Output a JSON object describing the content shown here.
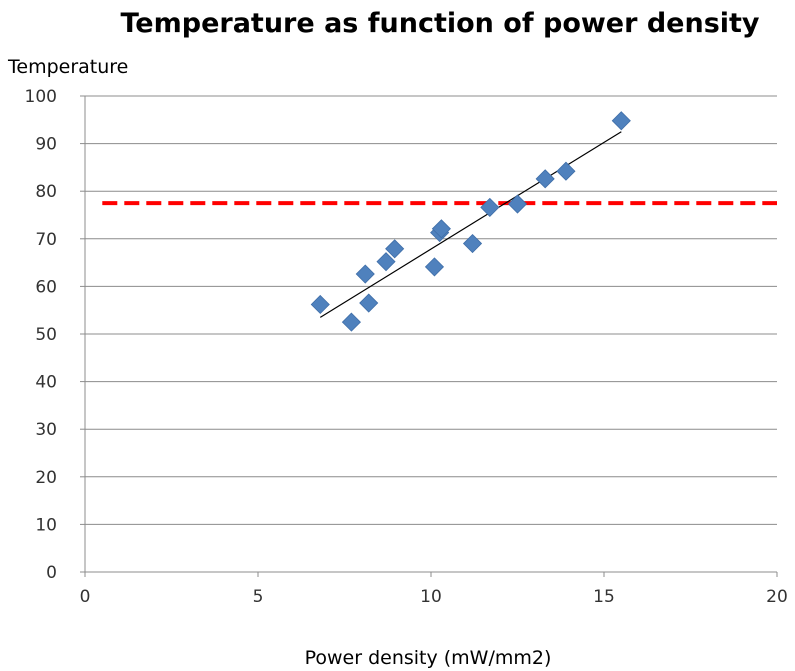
{
  "chart_data": {
    "type": "scatter",
    "title": "Temperature as function of power density",
    "xlabel": "Power density (mW/mm2)",
    "ylabel": "Temperature",
    "xlim": [
      0,
      20
    ],
    "ylim": [
      0,
      100
    ],
    "x_ticks": [
      0,
      5,
      10,
      15,
      20
    ],
    "y_ticks": [
      0,
      10,
      20,
      30,
      40,
      50,
      60,
      70,
      80,
      90,
      100
    ],
    "grid": "horizontal",
    "legend": "none",
    "series": [
      {
        "marker": "diamond",
        "color": "#4F81BD",
        "points": [
          {
            "x": 6.8,
            "y": 56.2
          },
          {
            "x": 7.7,
            "y": 52.5
          },
          {
            "x": 8.1,
            "y": 62.6
          },
          {
            "x": 8.2,
            "y": 56.5
          },
          {
            "x": 8.7,
            "y": 65.2
          },
          {
            "x": 8.95,
            "y": 67.9
          },
          {
            "x": 10.1,
            "y": 64.1
          },
          {
            "x": 10.25,
            "y": 71.3
          },
          {
            "x": 10.3,
            "y": 72.1
          },
          {
            "x": 11.2,
            "y": 69.0
          },
          {
            "x": 11.7,
            "y": 76.6
          },
          {
            "x": 12.5,
            "y": 77.3
          },
          {
            "x": 13.3,
            "y": 82.6
          },
          {
            "x": 13.9,
            "y": 84.2
          },
          {
            "x": 15.5,
            "y": 94.8
          }
        ]
      }
    ],
    "trendline": {
      "type": "linear",
      "color": "#000000",
      "x_range": [
        6.8,
        15.5
      ],
      "y_start": 53.5,
      "y_end": 92.5
    },
    "threshold_line": {
      "y": 77.5,
      "color": "#FF0000",
      "style": "dashed",
      "x_range": [
        0.5,
        20
      ]
    }
  }
}
